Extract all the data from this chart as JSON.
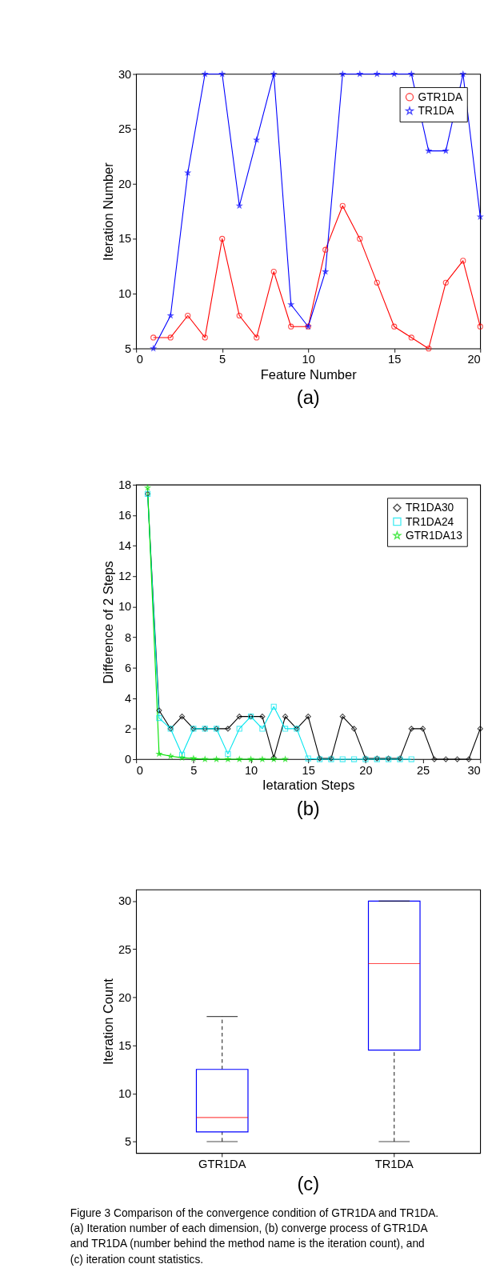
{
  "chart_data": [
    {
      "type": "line",
      "xlabel": "Feature Number",
      "ylabel": "Iteration Number",
      "annotations": [
        "(a)"
      ],
      "x": [
        1,
        2,
        3,
        4,
        5,
        6,
        7,
        8,
        9,
        10,
        11,
        12,
        13,
        14,
        15,
        16,
        17,
        18,
        19,
        20
      ],
      "series": [
        {
          "name": "GTR1DA",
          "color": "#ff0000",
          "marker": "circle",
          "values": [
            6,
            6,
            8,
            6,
            15,
            8,
            6,
            12,
            7,
            7,
            14,
            18,
            15,
            11,
            7,
            6,
            5,
            11,
            13,
            7
          ]
        },
        {
          "name": "TR1DA",
          "color": "#0000ff",
          "marker": "star",
          "values": [
            5,
            8,
            21,
            30,
            30,
            18,
            24,
            30,
            9,
            7,
            12,
            30,
            30,
            30,
            30,
            30,
            23,
            23,
            30,
            17
          ]
        }
      ],
      "xlim": [
        0,
        20
      ],
      "xticks": [
        0,
        5,
        10,
        15,
        20
      ],
      "ylim": [
        5,
        30
      ],
      "yticks": [
        5,
        10,
        15,
        20,
        25,
        30
      ],
      "grid": false,
      "legend": "top right",
      "line_style": "solid"
    },
    {
      "type": "line",
      "xlabel": "Ietaration Steps",
      "ylabel": "Difference of 2 Steps",
      "annotations": [
        "(b)"
      ],
      "series": [
        {
          "name": "TR1DA30",
          "color": "#000000",
          "marker": "diamond",
          "x": [
            1,
            2,
            3,
            4,
            5,
            6,
            7,
            8,
            9,
            10,
            11,
            12,
            13,
            14,
            15,
            16,
            17,
            18,
            19,
            20,
            21,
            22,
            23,
            24,
            25,
            26,
            27,
            28,
            29,
            30
          ],
          "values": [
            17.4,
            3.2,
            2.0,
            2.8,
            2.0,
            2.0,
            2.0,
            2.0,
            2.8,
            2.8,
            2.8,
            0.1,
            2.8,
            2.0,
            2.8,
            0.05,
            0.05,
            2.8,
            2.0,
            0.05,
            0.05,
            0.05,
            0.05,
            2.0,
            2.0,
            0,
            0,
            0,
            0,
            2.0
          ]
        },
        {
          "name": "TR1DA24",
          "color": "#00e5ee",
          "marker": "square",
          "x": [
            1,
            2,
            3,
            4,
            5,
            6,
            7,
            8,
            9,
            10,
            11,
            12,
            13,
            14,
            15,
            16,
            17,
            18,
            19,
            20,
            21,
            22,
            23,
            24
          ],
          "values": [
            17.4,
            2.7,
            2.0,
            0.3,
            2.0,
            2.0,
            2.0,
            0.35,
            2.0,
            2.8,
            2.0,
            3.45,
            2.0,
            2.0,
            0.05,
            0,
            0,
            0,
            0,
            0,
            0,
            0,
            0,
            0
          ]
        },
        {
          "name": "GTR1DA13",
          "color": "#00e000",
          "marker": "star",
          "x": [
            1,
            2,
            3,
            4,
            5,
            6,
            7,
            8,
            9,
            10,
            11,
            12,
            13
          ],
          "values": [
            17.8,
            0.35,
            0.2,
            0.1,
            0.05,
            0,
            0,
            0,
            0,
            0,
            0,
            0,
            0
          ]
        }
      ],
      "xlim": [
        0,
        30
      ],
      "xticks": [
        0,
        5,
        10,
        15,
        20,
        25,
        30
      ],
      "ylim": [
        0,
        18
      ],
      "yticks": [
        0,
        2,
        4,
        6,
        8,
        10,
        12,
        14,
        16,
        18
      ],
      "grid": false,
      "legend": "top right",
      "line_style": "solid"
    },
    {
      "type": "box",
      "ylabel": "Iteration Count",
      "categories": [
        "GTR1DA",
        "TR1DA"
      ],
      "boxes": [
        {
          "low": 5,
          "q1": 6,
          "median": 7.5,
          "q3": 12.5,
          "high": 18
        },
        {
          "low": 5,
          "q1": 14.5,
          "median": 23.5,
          "q3": 30,
          "high": 30
        }
      ],
      "ylim": [
        3.8,
        31.2
      ],
      "yticks": [
        5,
        10,
        15,
        20,
        25,
        30
      ],
      "grid": false,
      "annotations": [
        "(c)",
        "Figure 3 Comparison of the convergence condition of GTR1DA and TR1DA. (a) Iteration number of each dimension, (b) converge process of GTR1DA and TR1DA (number behind the method name is the iteration count), and (c) iteration count statistics."
      ]
    }
  ]
}
